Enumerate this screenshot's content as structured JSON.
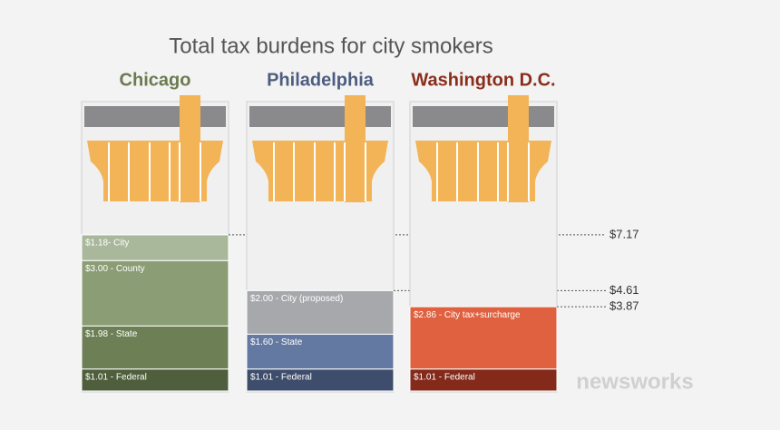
{
  "chart_data": {
    "type": "stacked_pack",
    "title": "Total tax burdens for city smokers",
    "stacks": [
      {
        "name": "Chicago",
        "color": "#6b7b4f",
        "segments": [
          {
            "value": 1.01,
            "label": "$1.01 - Federal",
            "color": "#4f5e3c"
          },
          {
            "value": 1.98,
            "label": "$1.98 - State",
            "color": "#6d8055"
          },
          {
            "value": 3.0,
            "label": "$3.00 - County",
            "color": "#8b9d74"
          },
          {
            "value": 1.18,
            "label": "$1.18- City",
            "color": "#a9b89b"
          }
        ],
        "total": {
          "value": 7.17,
          "label": "$7.17"
        }
      },
      {
        "name": "Philadelphia",
        "color": "#4d5d80",
        "segments": [
          {
            "value": 1.01,
            "label": "$1.01 - Federal",
            "color": "#3f4d6c"
          },
          {
            "value": 1.6,
            "label": "$1.60 - State",
            "color": "#6479a1"
          },
          {
            "value": 2.0,
            "label": "$2.00 - City (proposed)",
            "color": "#a7a8ab"
          }
        ],
        "total": {
          "value": 4.61,
          "label": "$4.61"
        }
      },
      {
        "name": "Washington D.C.",
        "color": "#8a2e1b",
        "segments": [
          {
            "value": 1.01,
            "label": "$1.01 - Federal",
            "color": "#832a1a"
          },
          {
            "value": 2.86,
            "label": "$2.86 - City tax+surcharge",
            "color": "#df613f"
          }
        ],
        "total": {
          "value": 3.87,
          "label": "$3.87"
        }
      }
    ],
    "watermark": "newsworks"
  }
}
